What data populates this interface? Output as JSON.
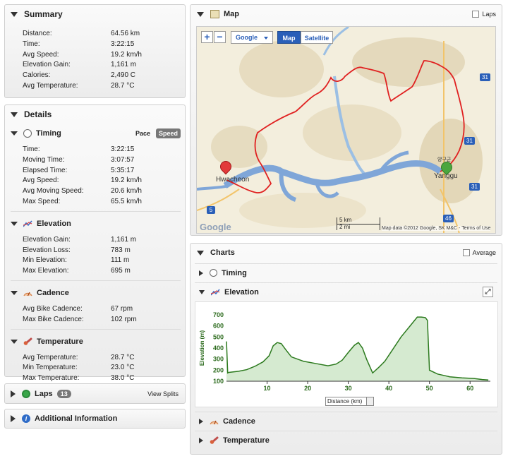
{
  "summary": {
    "title": "Summary",
    "rows": [
      {
        "k": "Distance:",
        "v": "64.56 km"
      },
      {
        "k": "Time:",
        "v": "3:22:15"
      },
      {
        "k": "Avg Speed:",
        "v": "19.2 km/h"
      },
      {
        "k": "Elevation Gain:",
        "v": "1,161 m"
      },
      {
        "k": "Calories:",
        "v": "2,490 C"
      },
      {
        "k": "Avg Temperature:",
        "v": "28.7 °C"
      }
    ]
  },
  "details": {
    "title": "Details",
    "timing": {
      "title": "Timing",
      "pace": "Pace",
      "speed": "Speed",
      "rows": [
        {
          "k": "Time:",
          "v": "3:22:15"
        },
        {
          "k": "Moving Time:",
          "v": "3:07:57"
        },
        {
          "k": "Elapsed Time:",
          "v": "5:35:17"
        },
        {
          "k": "Avg Speed:",
          "v": "19.2 km/h"
        },
        {
          "k": "Avg Moving Speed:",
          "v": "20.6 km/h"
        },
        {
          "k": "Max Speed:",
          "v": "65.5 km/h"
        }
      ]
    },
    "elevation": {
      "title": "Elevation",
      "rows": [
        {
          "k": "Elevation Gain:",
          "v": "1,161 m"
        },
        {
          "k": "Elevation Loss:",
          "v": "783 m"
        },
        {
          "k": "Min Elevation:",
          "v": "111 m"
        },
        {
          "k": "Max Elevation:",
          "v": "695 m"
        }
      ]
    },
    "cadence": {
      "title": "Cadence",
      "rows": [
        {
          "k": "Avg Bike Cadence:",
          "v": "67 rpm"
        },
        {
          "k": "Max Bike Cadence:",
          "v": "102 rpm"
        }
      ]
    },
    "temperature": {
      "title": "Temperature",
      "rows": [
        {
          "k": "Avg Temperature:",
          "v": "28.7 °C"
        },
        {
          "k": "Min Temperature:",
          "v": "23.0 °C"
        },
        {
          "k": "Max Temperature:",
          "v": "38.0 °C"
        }
      ]
    }
  },
  "laps": {
    "title": "Laps",
    "count": "13",
    "view_splits": "View Splits"
  },
  "additional": {
    "title": "Additional Information"
  },
  "map": {
    "title": "Map",
    "laps_label": "Laps",
    "provider": "Google",
    "map_btn": "Map",
    "satellite_btn": "Satellite",
    "labels": {
      "start": "Hwacheon",
      "end": "Yanggu",
      "end_kr": "양구군",
      "google": "Google",
      "scale_km": "5 km",
      "scale_mi": "2 mi",
      "attribution": "Map data ©2012 Google, SK M&C - Terms of Use",
      "r31a": "31",
      "r31b": "31",
      "r31c": "31",
      "r5": "5",
      "r46": "46"
    }
  },
  "charts": {
    "title": "Charts",
    "average_label": "Average",
    "timing": "Timing",
    "elevation": "Elevation",
    "cadence": "Cadence",
    "temperature": "Temperature",
    "xaxis_select": "Distance (km)"
  },
  "colors": {
    "route": "#e02020",
    "fill": "#d5ead0",
    "line": "#2c7a1e",
    "axis_text": "#2b6a1c"
  },
  "chart_data": {
    "type": "area",
    "ylabel": "Elevation (m)",
    "xlabel": "Distance (km)",
    "xlim": [
      0,
      65
    ],
    "ylim": [
      100,
      700
    ],
    "xticks": [
      10,
      20,
      30,
      40,
      50,
      60
    ],
    "yticks": [
      100,
      200,
      300,
      400,
      500,
      600,
      700
    ],
    "x": [
      0,
      0.3,
      0.6,
      3,
      5,
      7,
      9,
      10.5,
      11.5,
      12.5,
      13.5,
      14.5,
      16,
      19,
      22,
      25,
      27,
      28.5,
      30,
      31.5,
      32.5,
      33.5,
      34.5,
      36,
      37.5,
      39,
      41,
      43,
      45,
      47,
      48,
      49,
      49.5,
      50,
      52,
      55,
      58,
      61,
      63,
      64.5
    ],
    "y": [
      460,
      175,
      180,
      190,
      205,
      235,
      275,
      330,
      420,
      450,
      440,
      390,
      320,
      280,
      260,
      240,
      255,
      290,
      360,
      425,
      450,
      400,
      300,
      175,
      225,
      280,
      390,
      500,
      590,
      680,
      680,
      675,
      650,
      200,
      165,
      140,
      130,
      125,
      115,
      111
    ]
  }
}
